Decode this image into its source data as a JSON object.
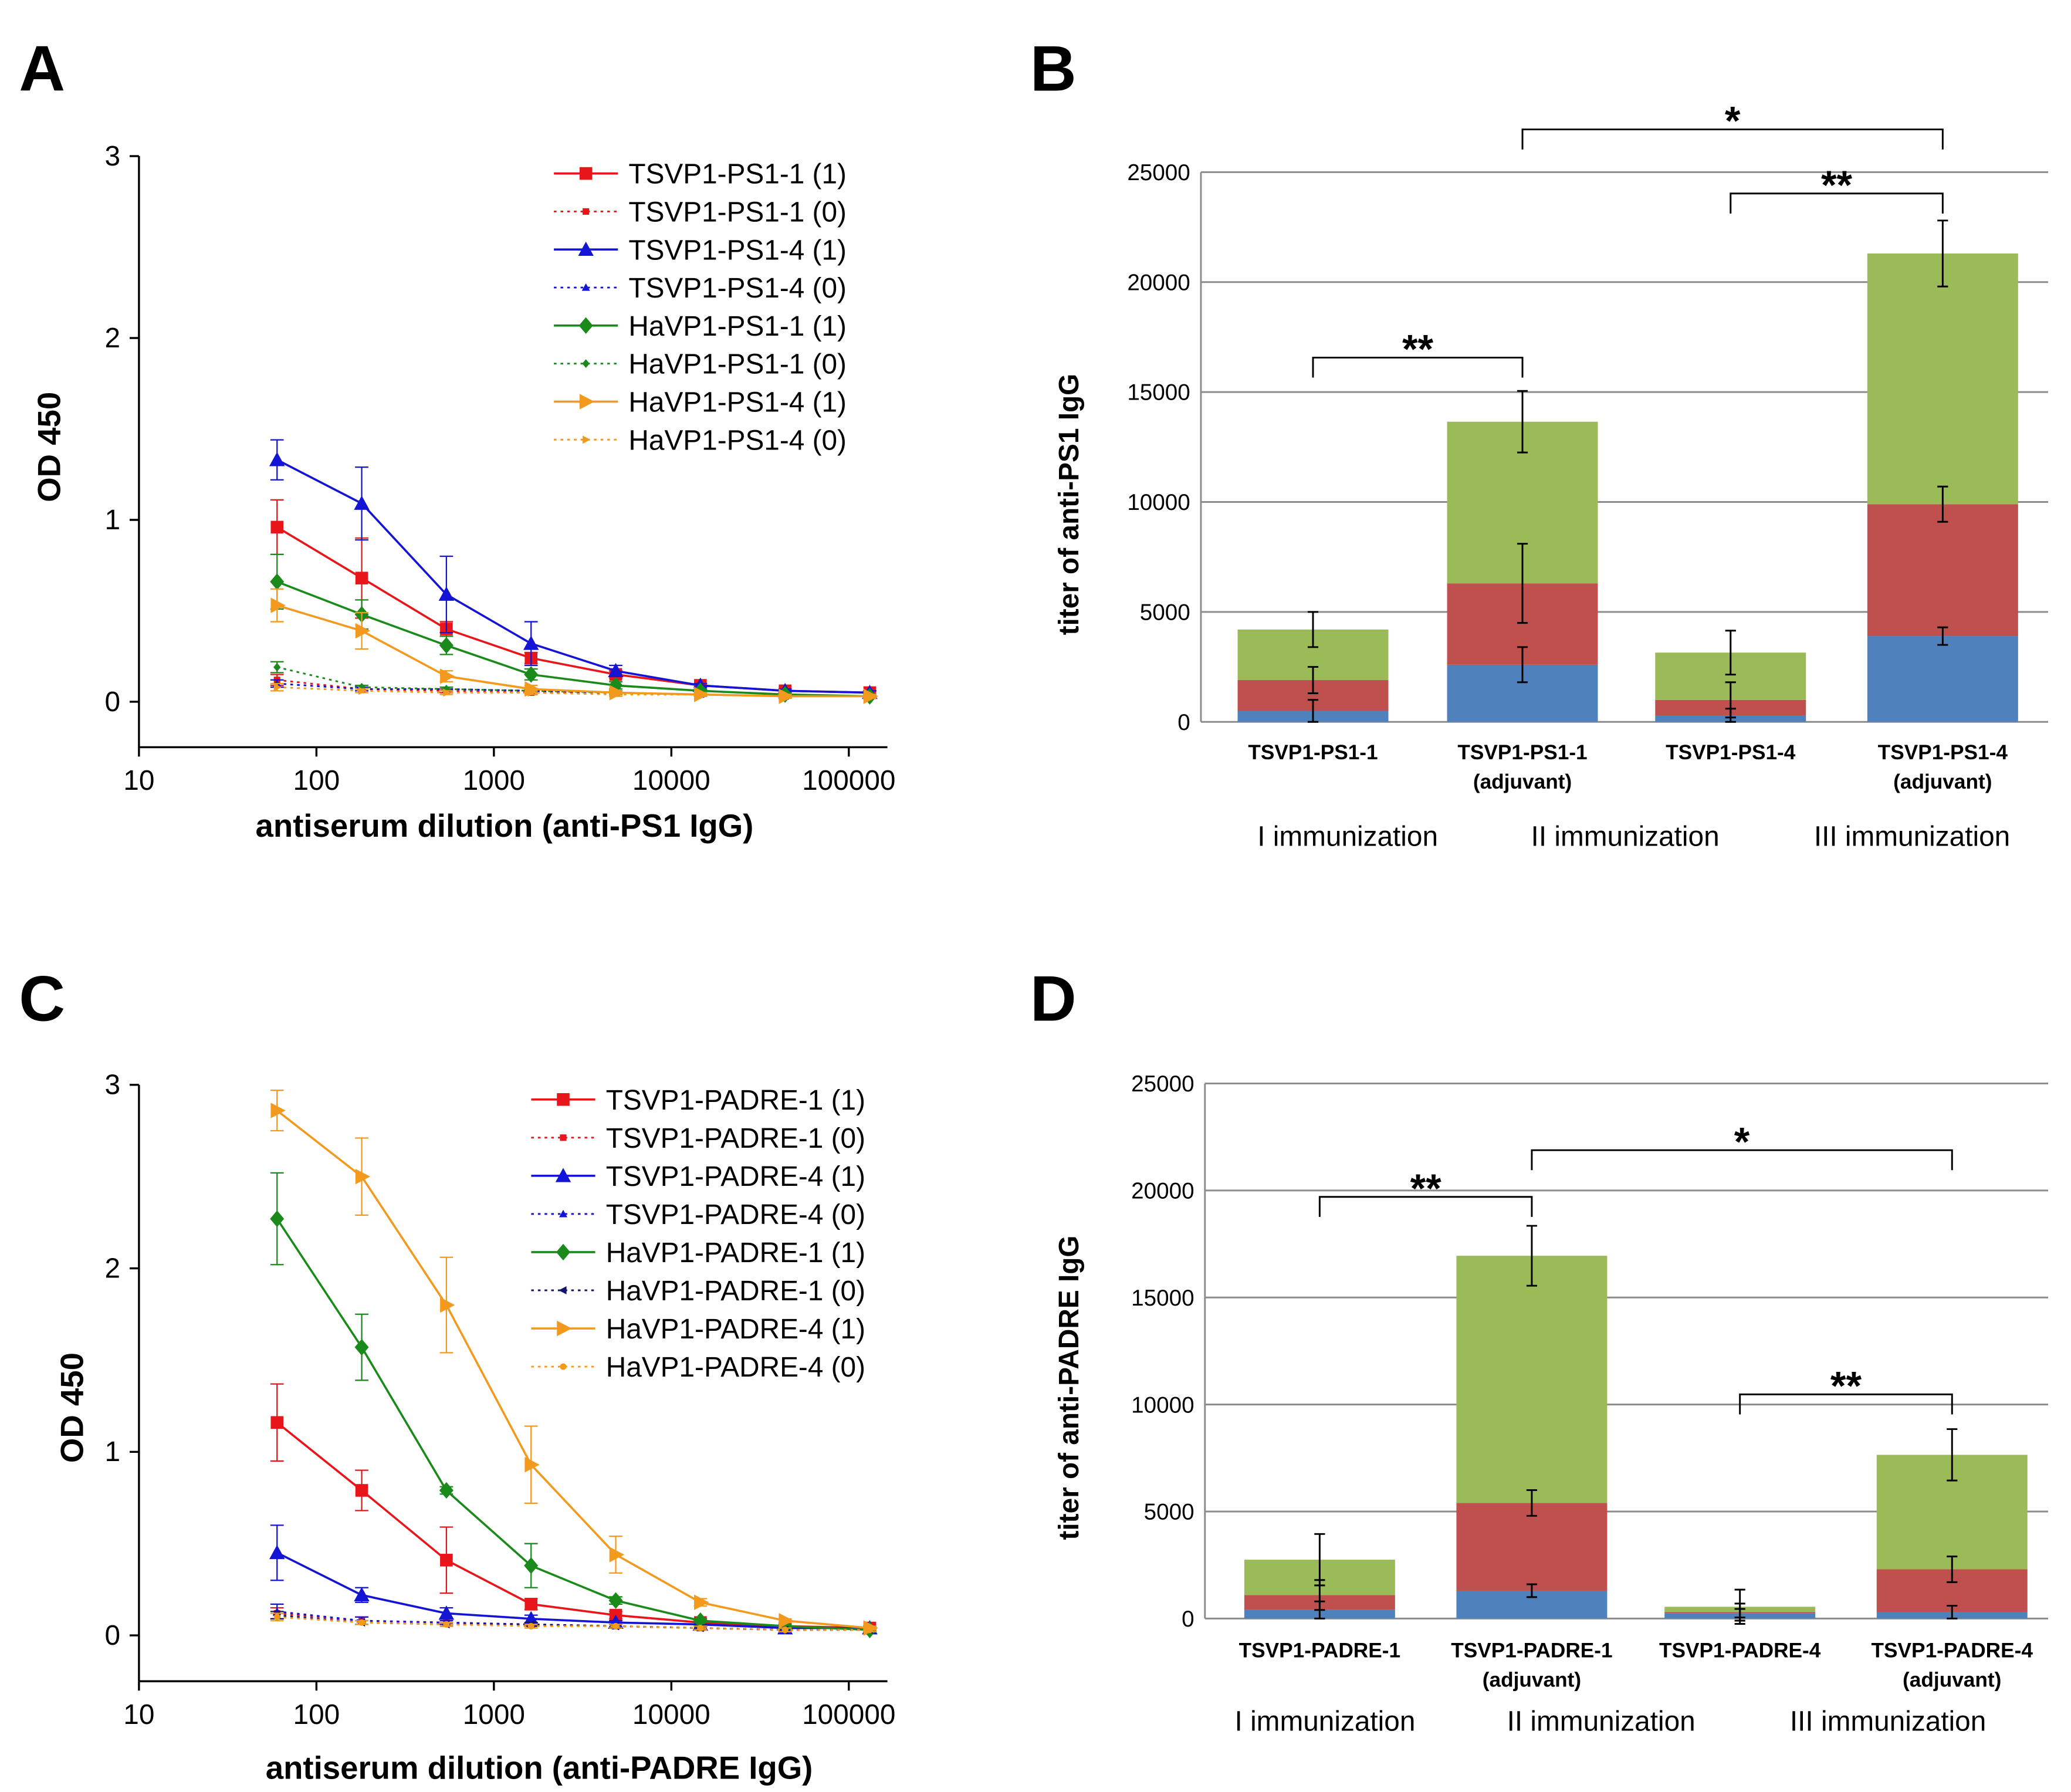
{
  "chart_data": [
    {
      "type": "line",
      "panel_label": "A",
      "x_label": "antiserum dilution (anti-PS1 IgG)",
      "y_label": "OD 450",
      "log_x": true,
      "xlim": [
        10,
        165000
      ],
      "xticks": [
        10,
        100,
        1000,
        10000,
        100000
      ],
      "ylim": [
        -0.25,
        3
      ],
      "yticks": [
        0,
        1,
        2,
        3
      ],
      "x": [
        60,
        180,
        540,
        1620,
        4860,
        14580,
        43740,
        131220
      ],
      "series": [
        {
          "name": "TSVP1-PS1-1 (1)",
          "color": "#e8161b",
          "line_style": "solid",
          "marker": "square",
          "values": [
            0.96,
            0.68,
            0.4,
            0.24,
            0.15,
            0.09,
            0.06,
            0.05
          ],
          "errors": [
            0.15,
            0.22,
            0.04,
            0.03,
            0.02,
            0.01,
            0.01,
            0.01
          ]
        },
        {
          "name": "TSVP1-PS1-1 (0)",
          "color": "#e8161b",
          "line_style": "dotted",
          "marker": "square",
          "values": [
            0.12,
            0.07,
            0.06,
            0.05,
            0.05,
            0.04,
            0.03,
            0.03
          ],
          "errors": [
            0.03,
            0.01,
            0.01,
            0.01,
            0.01,
            0.01,
            0.01,
            0.01
          ]
        },
        {
          "name": "TSVP1-PS1-4 (1)",
          "color": "#1414d4",
          "line_style": "solid",
          "marker": "triangle",
          "values": [
            1.33,
            1.09,
            0.59,
            0.32,
            0.17,
            0.09,
            0.06,
            0.05
          ],
          "errors": [
            0.11,
            0.2,
            0.21,
            0.12,
            0.03,
            0.01,
            0.01,
            0.01
          ]
        },
        {
          "name": "TSVP1-PS1-4 (0)",
          "color": "#1414d4",
          "line_style": "dotted",
          "marker": "triangle",
          "values": [
            0.1,
            0.07,
            0.07,
            0.06,
            0.05,
            0.04,
            0.03,
            0.03
          ],
          "errors": [
            0.02,
            0.01,
            0.01,
            0.01,
            0.01,
            0.01,
            0.01,
            0.01
          ]
        },
        {
          "name": "HaVP1-PS1-1 (1)",
          "color": "#1a8a1a",
          "line_style": "solid",
          "marker": "diamond",
          "values": [
            0.66,
            0.48,
            0.31,
            0.15,
            0.09,
            0.06,
            0.04,
            0.03
          ],
          "errors": [
            0.15,
            0.08,
            0.05,
            0.03,
            0.02,
            0.01,
            0.01,
            0.01
          ]
        },
        {
          "name": "HaVP1-PS1-1 (0)",
          "color": "#1a8a1a",
          "line_style": "dotted",
          "marker": "diamond",
          "values": [
            0.19,
            0.08,
            0.07,
            0.06,
            0.05,
            0.04,
            0.03,
            0.03
          ],
          "errors": [
            0.03,
            0.01,
            0.01,
            0.01,
            0.01,
            0.01,
            0.01,
            0.01
          ]
        },
        {
          "name": "HaVP1-PS1-4 (1)",
          "color": "#f39a1e",
          "line_style": "solid",
          "marker": "triangle-right",
          "values": [
            0.53,
            0.39,
            0.14,
            0.07,
            0.05,
            0.04,
            0.03,
            0.03
          ],
          "errors": [
            0.09,
            0.1,
            0.03,
            0.02,
            0.01,
            0.01,
            0.01,
            0.01
          ]
        },
        {
          "name": "HaVP1-PS1-4 (0)",
          "color": "#f39a1e",
          "line_style": "dotted",
          "marker": "triangle-right",
          "values": [
            0.08,
            0.06,
            0.05,
            0.05,
            0.04,
            0.04,
            0.03,
            0.03
          ],
          "errors": [
            0.02,
            0.01,
            0.01,
            0.01,
            0.01,
            0.01,
            0.01,
            0.01
          ]
        }
      ]
    },
    {
      "type": "bar",
      "stacked": true,
      "panel_label": "B",
      "y_label": "titer of anti-PS1 IgG",
      "ylim": [
        0,
        25000
      ],
      "yticks": [
        0,
        5000,
        10000,
        15000,
        20000,
        25000
      ],
      "grid": true,
      "categories": [
        [
          "TSVP1-PS1-1"
        ],
        [
          "TSVP1-PS1-1",
          "(adjuvant)"
        ],
        [
          "TSVP1-PS1-4"
        ],
        [
          "TSVP1-PS1-4",
          "(adjuvant)"
        ]
      ],
      "group_labels": [
        "I immunization",
        "II immunization",
        "III immunization"
      ],
      "annotations": [
        "**",
        "*",
        "**"
      ],
      "series": [
        {
          "color": "#4f81bd",
          "values": [
            500,
            2600,
            300,
            3900
          ],
          "errors": [
            500,
            800,
            300,
            400
          ]
        },
        {
          "color": "#c0504d",
          "values": [
            1400,
            3700,
            700,
            6000
          ],
          "errors": [
            600,
            1800,
            800,
            800
          ]
        },
        {
          "color": "#9bbb59",
          "values": [
            2300,
            7350,
            2150,
            11400
          ],
          "errors": [
            800,
            1400,
            1000,
            1500
          ]
        }
      ]
    },
    {
      "type": "line",
      "panel_label": "C",
      "x_label": "antiserum dilution (anti-PADRE IgG)",
      "y_label": "OD 450",
      "log_x": true,
      "xlim": [
        10,
        165000
      ],
      "xticks": [
        10,
        100,
        1000,
        10000,
        100000
      ],
      "ylim": [
        -0.25,
        3
      ],
      "yticks": [
        0,
        1,
        2,
        3
      ],
      "x": [
        60,
        180,
        540,
        1620,
        4860,
        14580,
        43740,
        131220
      ],
      "series": [
        {
          "name": "TSVP1-PADRE-1 (1)",
          "color": "#e8161b",
          "line_style": "solid",
          "marker": "square",
          "values": [
            1.16,
            0.79,
            0.41,
            0.17,
            0.11,
            0.07,
            0.05,
            0.04
          ],
          "errors": [
            0.21,
            0.11,
            0.18,
            0.03,
            0.02,
            0.01,
            0.01,
            0.01
          ]
        },
        {
          "name": "TSVP1-PADRE-1 (0)",
          "color": "#e8161b",
          "line_style": "dotted",
          "marker": "square",
          "values": [
            0.12,
            0.08,
            0.07,
            0.06,
            0.05,
            0.04,
            0.03,
            0.03
          ],
          "errors": [
            0.03,
            0.02,
            0.01,
            0.01,
            0.01,
            0.01,
            0.01,
            0.01
          ]
        },
        {
          "name": "TSVP1-PADRE-4 (1)",
          "color": "#1414d4",
          "line_style": "solid",
          "marker": "triangle",
          "values": [
            0.45,
            0.22,
            0.12,
            0.09,
            0.07,
            0.06,
            0.04,
            0.04
          ],
          "errors": [
            0.15,
            0.04,
            0.03,
            0.02,
            0.01,
            0.01,
            0.01,
            0.01
          ]
        },
        {
          "name": "TSVP1-PADRE-4 (0)",
          "color": "#1414d4",
          "line_style": "dotted",
          "marker": "triangle",
          "values": [
            0.13,
            0.08,
            0.07,
            0.06,
            0.05,
            0.04,
            0.03,
            0.03
          ],
          "errors": [
            0.04,
            0.02,
            0.01,
            0.01,
            0.01,
            0.01,
            0.01,
            0.01
          ]
        },
        {
          "name": "HaVP1-PADRE-1 (1)",
          "color": "#1a8a1a",
          "line_style": "solid",
          "marker": "diamond",
          "values": [
            2.27,
            1.57,
            0.79,
            0.38,
            0.19,
            0.08,
            0.05,
            0.03
          ],
          "errors": [
            0.25,
            0.18,
            0.02,
            0.12,
            0.02,
            0.01,
            0.01,
            0.01
          ]
        },
        {
          "name": "HaVP1-PADRE-1 (0)",
          "color": "#14146e",
          "line_style": "dotted",
          "marker": "triangle-left",
          "values": [
            0.11,
            0.07,
            0.06,
            0.06,
            0.05,
            0.04,
            0.03,
            0.03
          ],
          "errors": [
            0.02,
            0.01,
            0.01,
            0.01,
            0.01,
            0.01,
            0.01,
            0.01
          ]
        },
        {
          "name": "HaVP1-PADRE-4 (1)",
          "color": "#f39a1e",
          "line_style": "solid",
          "marker": "triangle-right",
          "values": [
            2.86,
            2.5,
            1.8,
            0.93,
            0.44,
            0.18,
            0.08,
            0.04
          ],
          "errors": [
            0.11,
            0.21,
            0.26,
            0.21,
            0.1,
            0.02,
            0.01,
            0.01
          ]
        },
        {
          "name": "HaVP1-PADRE-4 (0)",
          "color": "#f39a1e",
          "line_style": "dotted",
          "marker": "circle",
          "values": [
            0.1,
            0.07,
            0.06,
            0.05,
            0.05,
            0.04,
            0.03,
            0.03
          ],
          "errors": [
            0.02,
            0.01,
            0.01,
            0.01,
            0.01,
            0.01,
            0.01,
            0.01
          ]
        }
      ]
    },
    {
      "type": "bar",
      "stacked": true,
      "panel_label": "D",
      "y_label": "titer of anti-PADRE IgG",
      "ylim": [
        0,
        25000
      ],
      "yticks": [
        0,
        5000,
        10000,
        15000,
        20000,
        25000
      ],
      "grid": true,
      "categories": [
        [
          "TSVP1-PADRE-1"
        ],
        [
          "TSVP1-PADRE-1",
          "(adjuvant)"
        ],
        [
          "TSVP1-PADRE-4"
        ],
        [
          "TSVP1-PADRE-4",
          "(adjuvant)"
        ]
      ],
      "group_labels": [
        "I immunization",
        "II immunization",
        "III immunization"
      ],
      "annotations": [
        "**",
        "*",
        "**"
      ],
      "series": [
        {
          "color": "#4f81bd",
          "values": [
            400,
            1300,
            250,
            300
          ],
          "errors": [
            400,
            300,
            200,
            300
          ]
        },
        {
          "color": "#c0504d",
          "values": [
            700,
            4100,
            50,
            2000
          ],
          "errors": [
            700,
            600,
            400,
            600
          ]
        },
        {
          "color": "#9bbb59",
          "values": [
            1650,
            11550,
            250,
            5350
          ],
          "errors": [
            1200,
            1400,
            800,
            1200
          ]
        }
      ]
    }
  ]
}
